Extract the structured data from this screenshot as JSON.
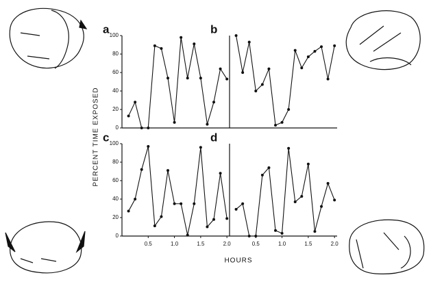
{
  "ylabel": "PERCENT TIME EXPOSED",
  "xlabel": "HOURS",
  "chart_data": [
    {
      "type": "line",
      "label": "a",
      "color": "#111111",
      "x": [
        0.125,
        0.25,
        0.375,
        0.5,
        0.625,
        0.75,
        0.875,
        1.0,
        1.125,
        1.25,
        1.375,
        1.5,
        1.625,
        1.75,
        1.875,
        2.0
      ],
      "values": [
        13,
        28,
        0,
        0,
        89,
        86,
        54,
        6,
        98,
        54,
        91,
        54,
        4,
        28,
        64,
        53
      ],
      "xlim": [
        0,
        2.05
      ],
      "ylim": [
        0,
        100
      ],
      "yticks": [
        0,
        20,
        40,
        60,
        80,
        100
      ]
    },
    {
      "type": "line",
      "label": "b",
      "color": "#111111",
      "x": [
        0.125,
        0.25,
        0.375,
        0.5,
        0.625,
        0.75,
        0.875,
        1.0,
        1.125,
        1.25,
        1.375,
        1.5,
        1.625,
        1.75,
        1.875,
        2.0
      ],
      "values": [
        100,
        60,
        93,
        40,
        47,
        64,
        3,
        6,
        20,
        84,
        65,
        77,
        83,
        88,
        53,
        89
      ],
      "xlim": [
        0,
        2.05
      ],
      "ylim": [
        0,
        100
      ]
    },
    {
      "type": "line",
      "label": "c",
      "color": "#111111",
      "x": [
        0.125,
        0.25,
        0.375,
        0.5,
        0.625,
        0.75,
        0.875,
        1.0,
        1.125,
        1.25,
        1.375,
        1.5,
        1.625,
        1.75,
        1.875,
        2.0
      ],
      "values": [
        27,
        40,
        72,
        97,
        11,
        21,
        71,
        35,
        35,
        1,
        35,
        96,
        10,
        18,
        68,
        19
      ],
      "xlim": [
        0,
        2.05
      ],
      "ylim": [
        0,
        100
      ],
      "yticks": [
        0,
        20,
        40,
        60,
        80,
        100
      ],
      "xticks": [
        0.5,
        {
          "value": 1.0,
          "label": "1.0"
        },
        1.5,
        {
          "value": 2.0,
          "label": "2.0"
        }
      ]
    },
    {
      "type": "line",
      "label": "d",
      "color": "#111111",
      "x": [
        0.125,
        0.25,
        0.375,
        0.5,
        0.625,
        0.75,
        0.875,
        1.0,
        1.125,
        1.25,
        1.375,
        1.5,
        1.625,
        1.75,
        1.875,
        2.0
      ],
      "values": [
        29,
        35,
        0,
        0,
        66,
        74,
        6,
        3,
        95,
        37,
        43,
        78,
        5,
        32,
        57,
        39
      ],
      "xlim": [
        0,
        2.05
      ],
      "ylim": [
        0,
        100
      ],
      "xticks": [
        0.5,
        {
          "value": 1.0,
          "label": "1.0"
        },
        1.5,
        {
          "value": 2.0,
          "label": "2.0"
        }
      ]
    }
  ]
}
